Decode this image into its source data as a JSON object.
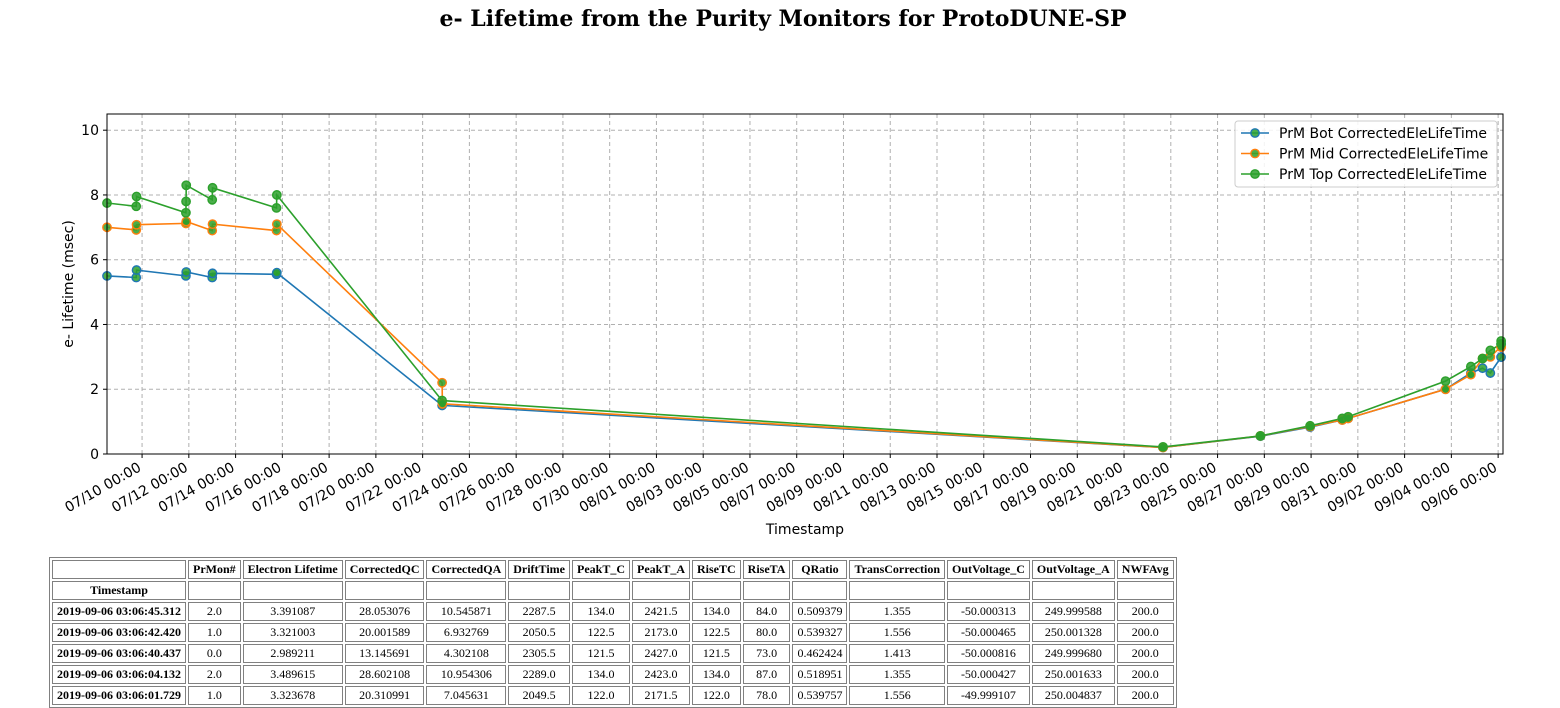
{
  "page_title": "e- Lifetime from the Purity Monitors for ProtoDUNE-SP",
  "chart_data": {
    "type": "line",
    "title": "e- Lifetime from the Purity Monitors for ProtoDUNE-SP",
    "xlabel": "Timestamp",
    "ylabel": "e- Lifetime (msec)",
    "ylim": [
      0,
      10.5
    ],
    "yticks": [
      0,
      2,
      4,
      6,
      8,
      10
    ],
    "xlim": [
      "2019-07-08 12:00",
      "2019-09-06 05:00"
    ],
    "xticks": [
      "2019-07-10 00:00",
      "2019-07-12 00:00",
      "2019-07-14 00:00",
      "2019-07-16 00:00",
      "2019-07-18 00:00",
      "2019-07-20 00:00",
      "2019-07-22 00:00",
      "2019-07-24 00:00",
      "2019-07-26 00:00",
      "2019-07-28 00:00",
      "2019-07-30 00:00",
      "2019-08-01 00:00",
      "2019-08-03 00:00",
      "2019-08-05 00:00",
      "2019-08-07 00:00",
      "2019-08-09 00:00",
      "2019-08-11 00:00",
      "2019-08-13 00:00",
      "2019-08-15 00:00",
      "2019-08-17 00:00",
      "2019-08-19 00:00",
      "2019-08-21 00:00",
      "2019-08-23 00:00",
      "2019-08-25 00:00",
      "2019-08-27 00:00",
      "2019-08-29 00:00",
      "2019-08-31 00:00",
      "2019-09-02 00:00",
      "2019-09-04 00:00",
      "2019-09-06 00:00"
    ],
    "xtick_labels": [
      "07/10 00:00",
      "07/12 00:00",
      "07/14 00:00",
      "07/16 00:00",
      "07/18 00:00",
      "07/20 00:00",
      "07/22 00:00",
      "07/24 00:00",
      "07/26 00:00",
      "07/28 00:00",
      "07/30 00:00",
      "08/01 00:00",
      "08/03 00:00",
      "08/05 00:00",
      "08/07 00:00",
      "08/09 00:00",
      "08/11 00:00",
      "08/13 00:00",
      "08/15 00:00",
      "08/17 00:00",
      "08/19 00:00",
      "08/21 00:00",
      "08/23 00:00",
      "08/25 00:00",
      "08/27 00:00",
      "08/29 00:00",
      "08/31 00:00",
      "09/02 00:00",
      "09/04 00:00",
      "09/06 00:00"
    ],
    "grid": true,
    "legend_position": "top-right",
    "series": [
      {
        "name": "PrM Bot CorrectedEleLifeTime",
        "color": "#1f77b4",
        "points": [
          [
            "2019-07-08 12:00",
            5.5
          ],
          [
            "2019-07-09 18:00",
            5.45
          ],
          [
            "2019-07-09 18:20",
            5.68
          ],
          [
            "2019-07-11 21:00",
            5.5
          ],
          [
            "2019-07-11 21:20",
            5.62
          ],
          [
            "2019-07-13 00:00",
            5.45
          ],
          [
            "2019-07-13 00:20",
            5.58
          ],
          [
            "2019-07-15 18:00",
            5.55
          ],
          [
            "2019-07-15 18:20",
            5.6
          ],
          [
            "2019-07-22 20:00",
            1.5
          ],
          [
            "2019-08-22 16:00",
            0.2
          ],
          [
            "2019-08-26 20:00",
            0.55
          ],
          [
            "2019-08-28 23:00",
            0.83
          ],
          [
            "2019-08-30 08:00",
            1.05
          ],
          [
            "2019-08-30 14:00",
            1.1
          ],
          [
            "2019-09-03 18:00",
            2.0
          ],
          [
            "2019-09-04 20:00",
            2.5
          ],
          [
            "2019-09-05 08:00",
            2.65
          ],
          [
            "2019-09-05 16:00",
            2.5
          ],
          [
            "2019-09-06 03:00",
            2.99
          ],
          [
            "2019-09-06 03:06",
            3.39
          ]
        ]
      },
      {
        "name": "PrM Mid CorrectedEleLifeTime",
        "color": "#ff7f0e",
        "points": [
          [
            "2019-07-08 12:00",
            7.0
          ],
          [
            "2019-07-09 18:00",
            6.92
          ],
          [
            "2019-07-09 18:20",
            7.08
          ],
          [
            "2019-07-11 21:00",
            7.12
          ],
          [
            "2019-07-11 21:20",
            7.18
          ],
          [
            "2019-07-13 00:00",
            6.9
          ],
          [
            "2019-07-13 00:20",
            7.1
          ],
          [
            "2019-07-15 18:00",
            6.9
          ],
          [
            "2019-07-15 18:20",
            7.1
          ],
          [
            "2019-07-22 20:00",
            2.2
          ],
          [
            "2019-07-22 20:20",
            1.55
          ],
          [
            "2019-08-22 16:00",
            0.2
          ],
          [
            "2019-08-26 20:00",
            0.56
          ],
          [
            "2019-08-28 23:00",
            0.85
          ],
          [
            "2019-08-30 08:00",
            1.05
          ],
          [
            "2019-08-30 14:00",
            1.1
          ],
          [
            "2019-09-03 18:00",
            2.0
          ],
          [
            "2019-09-04 20:00",
            2.45
          ],
          [
            "2019-09-05 08:00",
            2.95
          ],
          [
            "2019-09-05 16:00",
            3.0
          ],
          [
            "2019-09-06 03:00",
            3.32
          ],
          [
            "2019-09-06 03:06",
            3.3
          ]
        ]
      },
      {
        "name": "PrM Top CorrectedEleLifeTime",
        "color": "#2ca02c",
        "points": [
          [
            "2019-07-08 12:00",
            7.75
          ],
          [
            "2019-07-09 18:00",
            7.65
          ],
          [
            "2019-07-09 18:20",
            7.95
          ],
          [
            "2019-07-11 21:00",
            7.45
          ],
          [
            "2019-07-11 21:10",
            7.8
          ],
          [
            "2019-07-11 21:20",
            8.3
          ],
          [
            "2019-07-13 00:00",
            7.85
          ],
          [
            "2019-07-13 00:20",
            8.22
          ],
          [
            "2019-07-15 18:00",
            7.6
          ],
          [
            "2019-07-15 18:20",
            8.0
          ],
          [
            "2019-07-22 20:00",
            1.65
          ],
          [
            "2019-08-22 16:00",
            0.22
          ],
          [
            "2019-08-26 20:00",
            0.56
          ],
          [
            "2019-08-28 23:00",
            0.87
          ],
          [
            "2019-08-30 08:00",
            1.1
          ],
          [
            "2019-08-30 14:00",
            1.15
          ],
          [
            "2019-09-03 18:00",
            2.25
          ],
          [
            "2019-09-04 20:00",
            2.7
          ],
          [
            "2019-09-05 08:00",
            2.95
          ],
          [
            "2019-09-05 16:00",
            3.2
          ],
          [
            "2019-09-06 03:00",
            3.4
          ],
          [
            "2019-09-06 03:06",
            3.49
          ]
        ]
      }
    ]
  },
  "table": {
    "columns": [
      "",
      "PrMon#",
      "Electron Lifetime",
      "CorrectedQC",
      "CorrectedQA",
      "DriftTime",
      "PeakT_C",
      "PeakT_A",
      "RiseTC",
      "RiseTA",
      "QRatio",
      "TransCorrection",
      "OutVoltage_C",
      "OutVoltage_A",
      "NWFAvg"
    ],
    "index_name": "Timestamp",
    "rows": [
      [
        "2019-09-06 03:06:45.312",
        "2.0",
        "3.391087",
        "28.053076",
        "10.545871",
        "2287.5",
        "134.0",
        "2421.5",
        "134.0",
        "84.0",
        "0.509379",
        "1.355",
        "-50.000313",
        "249.999588",
        "200.0"
      ],
      [
        "2019-09-06 03:06:42.420",
        "1.0",
        "3.321003",
        "20.001589",
        "6.932769",
        "2050.5",
        "122.5",
        "2173.0",
        "122.5",
        "80.0",
        "0.539327",
        "1.556",
        "-50.000465",
        "250.001328",
        "200.0"
      ],
      [
        "2019-09-06 03:06:40.437",
        "0.0",
        "2.989211",
        "13.145691",
        "4.302108",
        "2305.5",
        "121.5",
        "2427.0",
        "121.5",
        "73.0",
        "0.462424",
        "1.413",
        "-50.000816",
        "249.999680",
        "200.0"
      ],
      [
        "2019-09-06 03:06:04.132",
        "2.0",
        "3.489615",
        "28.602108",
        "10.954306",
        "2289.0",
        "134.0",
        "2423.0",
        "134.0",
        "87.0",
        "0.518951",
        "1.355",
        "-50.000427",
        "250.001633",
        "200.0"
      ],
      [
        "2019-09-06 03:06:01.729",
        "1.0",
        "3.323678",
        "20.310991",
        "7.045631",
        "2049.5",
        "122.0",
        "2171.5",
        "122.0",
        "78.0",
        "0.539757",
        "1.556",
        "-49.999107",
        "250.004837",
        "200.0"
      ]
    ]
  }
}
